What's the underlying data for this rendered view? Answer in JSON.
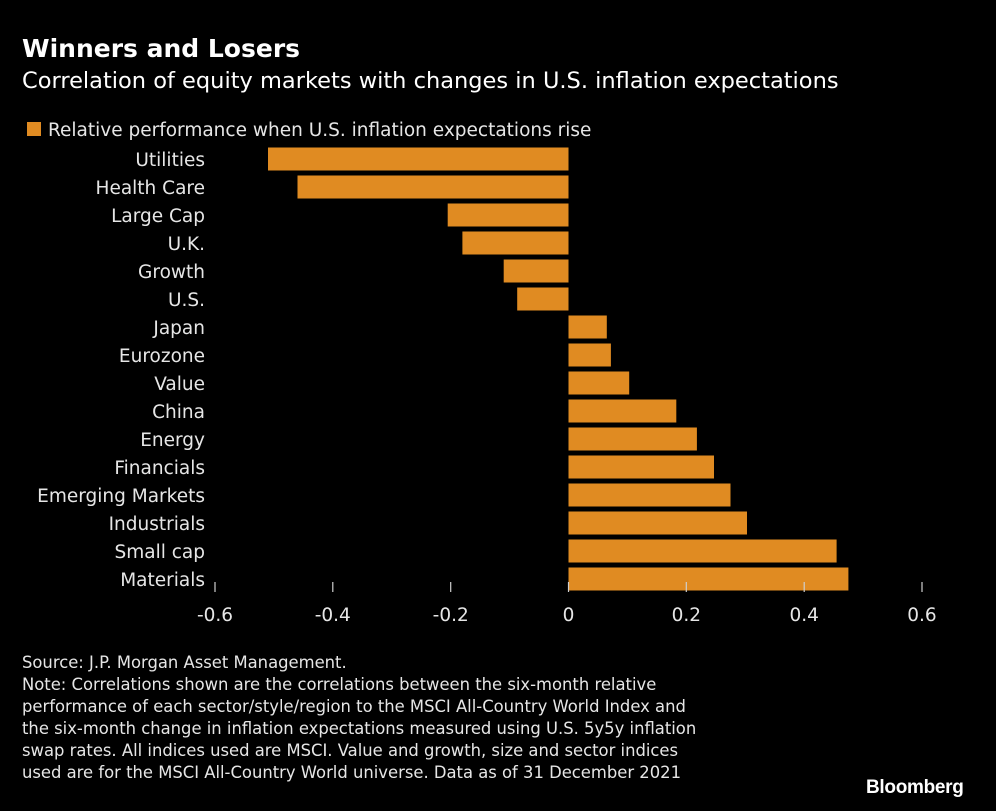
{
  "title": "Winners and Losers",
  "subtitle": "Correlation of equity markets with changes in U.S. inflation expectations",
  "chart_data": {
    "type": "bar",
    "orientation": "horizontal",
    "categories": [
      "Utilities",
      "Health Care",
      "Large Cap",
      "U.K.",
      "Growth",
      "U.S.",
      "Japan",
      "Eurozone",
      "Value",
      "China",
      "Energy",
      "Financials",
      "Emerging Markets",
      "Industrials",
      "Small cap",
      "Materials"
    ],
    "series": [
      {
        "name": "Relative performance when U.S. inflation expectations rise",
        "color": "#e08b22",
        "values": [
          -0.51,
          -0.46,
          -0.205,
          -0.18,
          -0.11,
          -0.087,
          0.065,
          0.072,
          0.103,
          0.183,
          0.218,
          0.247,
          0.275,
          0.303,
          0.455,
          0.475
        ]
      }
    ],
    "xlim": [
      -0.6,
      0.6
    ],
    "xticks": [
      -0.6,
      -0.4,
      -0.2,
      0,
      0.2,
      0.4,
      0.6
    ],
    "xtick_labels": [
      "-0.6",
      "-0.4",
      "-0.2",
      "0",
      "0.2",
      "0.4",
      "0.6"
    ],
    "xlabel": "",
    "ylabel": "",
    "grid": false,
    "legend_position": "top-left"
  },
  "footer": {
    "source": "Source: J.P. Morgan Asset Management.",
    "note_lines": [
      "Note: Correlations shown are the correlations between the six-month relative",
      "performance of each sector/style/region to the MSCI All-Country World Index and",
      "the six-month change in inflation expectations measured using U.S. 5y5y inflation",
      "swap rates. All indices used are MSCI. Value and growth, size and sector indices",
      "used are for the MSCI All-Country World universe. Data as of 31 December 2021"
    ]
  },
  "brand": "Bloomberg"
}
